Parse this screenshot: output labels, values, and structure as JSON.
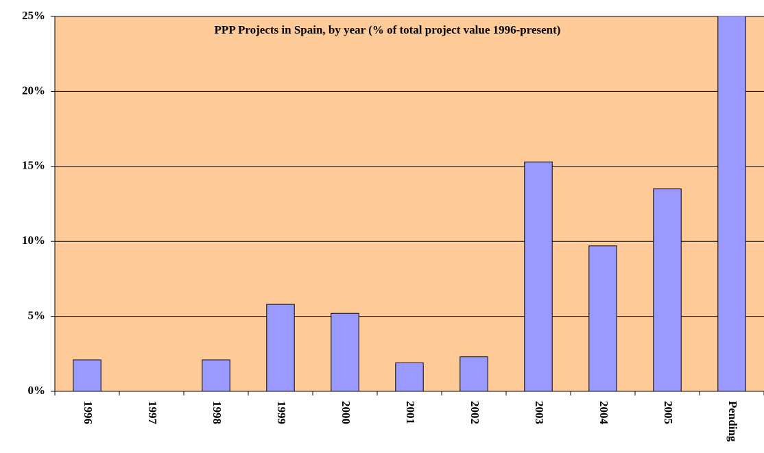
{
  "chart_data": {
    "type": "bar",
    "title": "PPP Projects in Spain, by year (% of total project value 1996-present)",
    "categories": [
      "1996",
      "1997",
      "1998",
      "1999",
      "2000",
      "2001",
      "2002",
      "2003",
      "2004",
      "2005",
      "Pending"
    ],
    "values": [
      2.1,
      0,
      2.1,
      5.8,
      5.2,
      1.9,
      2.3,
      15.3,
      9.7,
      13.5,
      26
    ],
    "color": "#9999ff",
    "background": "#ffcc99",
    "ylim": [
      0,
      25
    ],
    "yticks": [
      {
        "value": 0,
        "label": "0%"
      },
      {
        "value": 5,
        "label": "5%"
      },
      {
        "value": 10,
        "label": "10%"
      },
      {
        "value": 15,
        "label": "15%"
      },
      {
        "value": 20,
        "label": "20%"
      },
      {
        "value": 25,
        "label": "25%"
      }
    ],
    "grid": true
  }
}
